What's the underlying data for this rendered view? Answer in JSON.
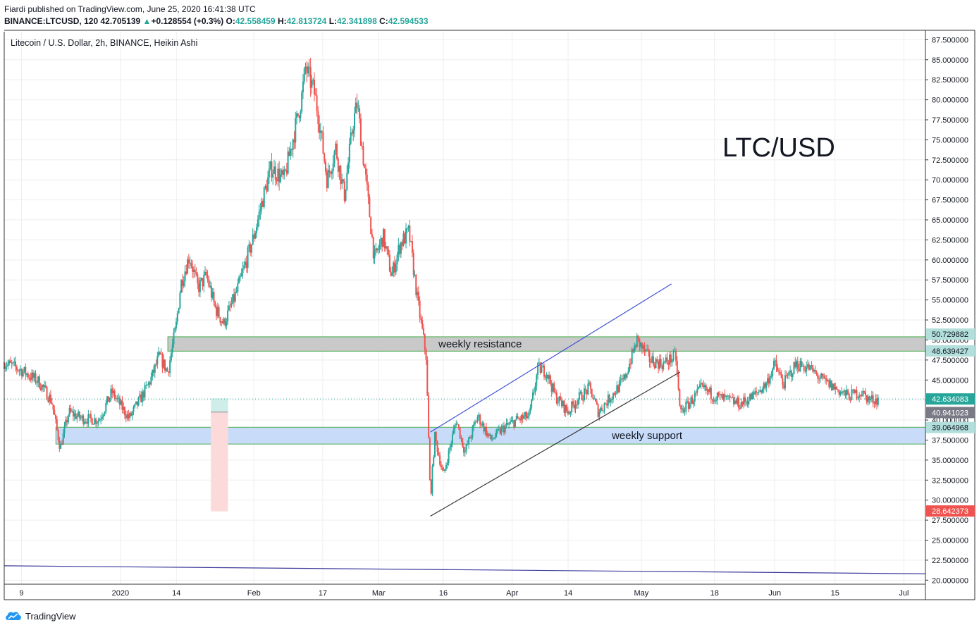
{
  "header": {
    "line1": "Fiardi published on TradingView.com, June 25, 2020 16:41:38 UTC",
    "symbol": "BINANCE:LTCUSD, 120",
    "last": "42.705139",
    "change": "+0.128554 (+0.3%)",
    "o_label": "O:",
    "o": "42.558459",
    "h_label": "H:",
    "h": "42.813724",
    "l_label": "L:",
    "l": "42.341898",
    "c_label": "C:",
    "c": "42.594533"
  },
  "footer": {
    "brand": "TradingView",
    "logo_icon": "tradingview-cloud-icon"
  },
  "chart_data": {
    "type": "candlestick",
    "subtitle": "Litecoin / U.S. Dollar, 2h, BINANCE, Heikin Ashi",
    "watermark": "LTC/USD",
    "ylim": [
      19.5,
      88.5
    ],
    "yticks": [
      20,
      22.5,
      25,
      27.5,
      30,
      32.5,
      35,
      37.5,
      40,
      42.5,
      45,
      47.5,
      50,
      52.5,
      55,
      57.5,
      60,
      62.5,
      65,
      67.5,
      70,
      72.5,
      75,
      77.5,
      80,
      82.5,
      85,
      87.5
    ],
    "ytick_labels": [
      "20.000000",
      "22.500000",
      "25.000000",
      "27.500000",
      "30.000000",
      "32.500000",
      "35.000000",
      "37.500000",
      "40.000000",
      "42.500000",
      "45.000000",
      "47.500000",
      "50.000000",
      "52.500000",
      "55.000000",
      "57.500000",
      "60.000000",
      "62.500000",
      "65.000000",
      "67.500000",
      "70.000000",
      "72.500000",
      "75.000000",
      "77.500000",
      "80.000000",
      "82.500000",
      "85.000000",
      "87.500000"
    ],
    "xlim": [
      "2019-12-05",
      "2020-07-06"
    ],
    "xticks": [
      {
        "date": "2019-12-09",
        "label": "9"
      },
      {
        "date": "2020-01-01",
        "label": "2020"
      },
      {
        "date": "2020-01-14",
        "label": "14"
      },
      {
        "date": "2020-02-01",
        "label": "Feb"
      },
      {
        "date": "2020-02-17",
        "label": "17"
      },
      {
        "date": "2020-03-01",
        "label": "Mar"
      },
      {
        "date": "2020-03-16",
        "label": "16"
      },
      {
        "date": "2020-04-01",
        "label": "Apr"
      },
      {
        "date": "2020-04-14",
        "label": "14"
      },
      {
        "date": "2020-05-01",
        "label": "May"
      },
      {
        "date": "2020-05-18",
        "label": "18"
      },
      {
        "date": "2020-06-01",
        "label": "Jun"
      },
      {
        "date": "2020-06-15",
        "label": "15"
      },
      {
        "date": "2020-07-01",
        "label": "Jul"
      }
    ],
    "price_path": [
      [
        "2019-12-05",
        47.2
      ],
      [
        "2019-12-09",
        46.2
      ],
      [
        "2019-12-13",
        44.8
      ],
      [
        "2019-12-16",
        42.4
      ],
      [
        "2019-12-18",
        36.5
      ],
      [
        "2019-12-20",
        41.0
      ],
      [
        "2019-12-23",
        40.2
      ],
      [
        "2019-12-27",
        40.0
      ],
      [
        "2019-12-30",
        43.5
      ],
      [
        "2020-01-03",
        40.2
      ],
      [
        "2020-01-06",
        43.0
      ],
      [
        "2020-01-08",
        45.0
      ],
      [
        "2020-01-10",
        48.0
      ],
      [
        "2020-01-12",
        46.0
      ],
      [
        "2020-01-14",
        52.0
      ],
      [
        "2020-01-15",
        57.0
      ],
      [
        "2020-01-17",
        60.5
      ],
      [
        "2020-01-19",
        56.5
      ],
      [
        "2020-01-21",
        58.0
      ],
      [
        "2020-01-23",
        54.0
      ],
      [
        "2020-01-25",
        52.0
      ],
      [
        "2020-01-28",
        56.0
      ],
      [
        "2020-01-30",
        59.5
      ],
      [
        "2020-02-01",
        63.0
      ],
      [
        "2020-02-03",
        67.5
      ],
      [
        "2020-02-05",
        71.5
      ],
      [
        "2020-02-08",
        70.0
      ],
      [
        "2020-02-10",
        75.0
      ],
      [
        "2020-02-12",
        80.0
      ],
      [
        "2020-02-13",
        84.0
      ],
      [
        "2020-02-15",
        81.0
      ],
      [
        "2020-02-16",
        78.0
      ],
      [
        "2020-02-18",
        70.0
      ],
      [
        "2020-02-20",
        74.0
      ],
      [
        "2020-02-22",
        68.0
      ],
      [
        "2020-02-24",
        77.0
      ],
      [
        "2020-02-25",
        79.5
      ],
      [
        "2020-02-27",
        70.0
      ],
      [
        "2020-02-29",
        60.0
      ],
      [
        "2020-03-02",
        63.0
      ],
      [
        "2020-03-04",
        58.0
      ],
      [
        "2020-03-06",
        62.0
      ],
      [
        "2020-03-08",
        63.5
      ],
      [
        "2020-03-10",
        55.0
      ],
      [
        "2020-03-12",
        48.0
      ],
      [
        "2020-03-13",
        30.0
      ],
      [
        "2020-03-14",
        38.0
      ],
      [
        "2020-03-16",
        33.0
      ],
      [
        "2020-03-19",
        40.0
      ],
      [
        "2020-03-21",
        36.0
      ],
      [
        "2020-03-24",
        40.5
      ],
      [
        "2020-03-27",
        37.5
      ],
      [
        "2020-03-30",
        39.0
      ],
      [
        "2020-04-02",
        40.0
      ],
      [
        "2020-04-05",
        40.5
      ],
      [
        "2020-04-07",
        46.5
      ],
      [
        "2020-04-09",
        46.0
      ],
      [
        "2020-04-11",
        43.0
      ],
      [
        "2020-04-14",
        41.0
      ],
      [
        "2020-04-16",
        42.5
      ],
      [
        "2020-04-19",
        44.0
      ],
      [
        "2020-04-21",
        41.0
      ],
      [
        "2020-04-24",
        43.0
      ],
      [
        "2020-04-27",
        45.0
      ],
      [
        "2020-04-30",
        50.0
      ],
      [
        "2020-05-03",
        47.5
      ],
      [
        "2020-05-06",
        47.0
      ],
      [
        "2020-05-09",
        48.0
      ],
      [
        "2020-05-10",
        41.0
      ],
      [
        "2020-05-12",
        42.0
      ],
      [
        "2020-05-15",
        44.0
      ],
      [
        "2020-05-18",
        43.0
      ],
      [
        "2020-05-21",
        42.5
      ],
      [
        "2020-05-24",
        42.0
      ],
      [
        "2020-05-27",
        43.0
      ],
      [
        "2020-05-30",
        44.5
      ],
      [
        "2020-06-01",
        47.0
      ],
      [
        "2020-06-03",
        44.5
      ],
      [
        "2020-06-06",
        47.0
      ],
      [
        "2020-06-09",
        46.5
      ],
      [
        "2020-06-12",
        45.0
      ],
      [
        "2020-06-15",
        44.0
      ],
      [
        "2020-06-18",
        43.0
      ],
      [
        "2020-06-21",
        43.5
      ],
      [
        "2020-06-23",
        42.5
      ],
      [
        "2020-06-25",
        42.6
      ]
    ],
    "zones": [
      {
        "label": "weekly resistance",
        "from": "2020-01-12",
        "to": "2020-07-06",
        "y_low": 48.6,
        "y_high": 50.4,
        "fill": "#c9c9c9",
        "edge": "#4caf50"
      },
      {
        "label": "weekly support",
        "from": "2019-12-17",
        "to": "2020-07-06",
        "y_low": 37.0,
        "y_high": 39.1,
        "fill": "#c8dcfa",
        "edge": "#4caf50"
      }
    ],
    "trendlines": [
      {
        "name": "upper-channel",
        "from": [
          "2020-03-13",
          38.5
        ],
        "to": [
          "2020-05-08",
          57.0
        ],
        "color": "#3f51d6"
      },
      {
        "name": "lower-channel",
        "from": [
          "2020-03-13",
          28.0
        ],
        "to": [
          "2020-05-10",
          46.0
        ],
        "color": "#3a3a3a"
      },
      {
        "name": "long-term",
        "from": [
          "2019-12-05",
          21.8
        ],
        "to": [
          "2020-07-06",
          20.8
        ],
        "color": "#3c3c9c"
      }
    ],
    "position_box": {
      "from": "2020-01-22",
      "to": "2020-01-26",
      "entry": 41.0,
      "target": 42.7,
      "stop": 28.6
    },
    "price_labels": [
      {
        "value": 50.729882,
        "text": "50.729882",
        "bg": "#b2dfdb",
        "fg": "#131722"
      },
      {
        "value": 48.639427,
        "text": "48.639427",
        "bg": "#b2dfdb",
        "fg": "#131722"
      },
      {
        "value": 42.634083,
        "text": "42.634083",
        "bg": "#26a69a",
        "fg": "#ffffff"
      },
      {
        "value": 40.941023,
        "text": "40.941023",
        "bg": "#787b86",
        "fg": "#ffffff"
      },
      {
        "value": 39.064968,
        "text": "39.064968",
        "bg": "#b2dfdb",
        "fg": "#131722"
      },
      {
        "value": 28.642373,
        "text": "28.642373",
        "bg": "#ef5350",
        "fg": "#ffffff"
      }
    ],
    "colors": {
      "up": "#26a69a",
      "down": "#ef5350",
      "grid": "#eeeeee"
    }
  }
}
